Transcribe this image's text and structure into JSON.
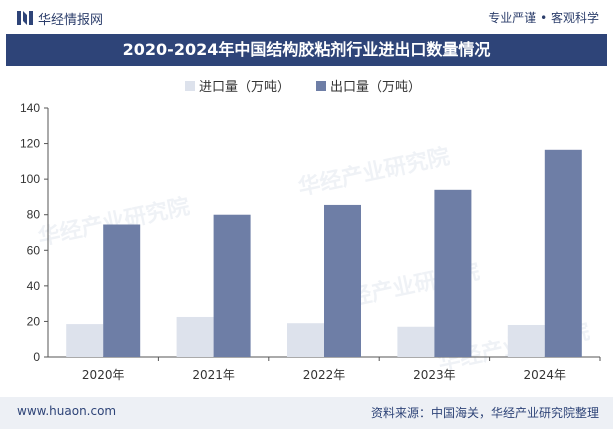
{
  "header": {
    "brand": "华经情报网",
    "tagline": "专业严谨 • 客观科学"
  },
  "chart_data": {
    "type": "bar",
    "title": "2020-2024年中国结构胶粘剂行业进出口数量情况",
    "categories": [
      "2020年",
      "2021年",
      "2022年",
      "2023年",
      "2024年"
    ],
    "series": [
      {
        "name": "进口量（万吨）",
        "values": [
          18.5,
          22.5,
          19,
          17,
          18
        ],
        "color": "#dde2ec"
      },
      {
        "name": "出口量（万吨）",
        "values": [
          74.5,
          80,
          85.5,
          94,
          116.5
        ],
        "color": "#6e7ea6"
      }
    ],
    "ylim": [
      0,
      140
    ],
    "yticks": [
      0,
      20,
      40,
      60,
      80,
      100,
      120,
      140
    ],
    "xlabel": "",
    "ylabel": "",
    "grid": false,
    "legend": "top-left"
  },
  "watermark": "华经产业研究院",
  "footer": {
    "url": "www.huaon.com",
    "source": "资料来源：中国海关，华经产业研究院整理"
  }
}
